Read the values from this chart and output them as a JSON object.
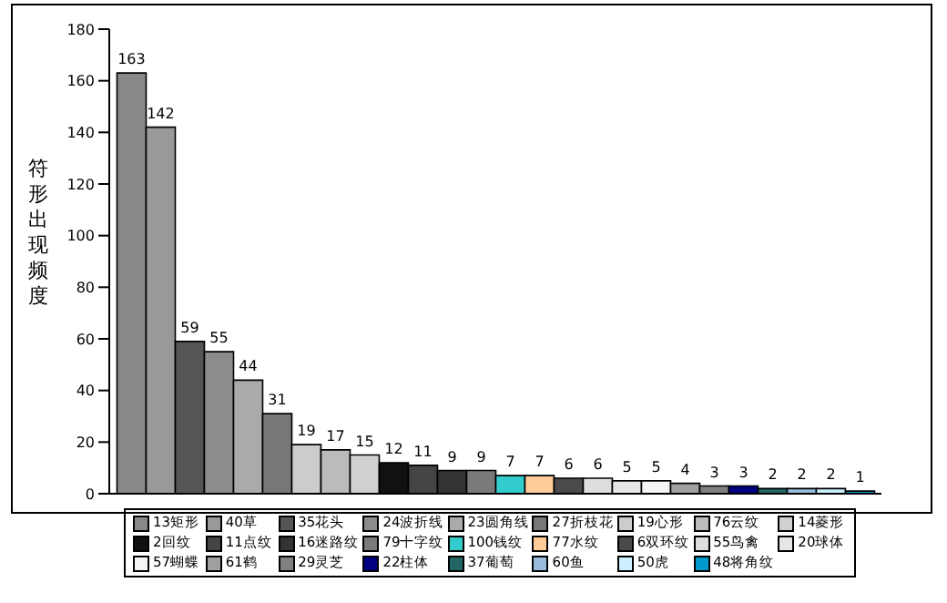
{
  "chart_data": {
    "type": "bar",
    "ylabel": "符形出现频度",
    "categories": [
      null
    ],
    "ylim": [
      0,
      180
    ],
    "yticks": [
      0,
      20,
      40,
      60,
      80,
      100,
      120,
      140,
      160,
      180
    ],
    "grid": false,
    "legend": "bottom",
    "data_labels": true,
    "series": [
      {
        "name": "13矩形",
        "color": "#888888",
        "values": [
          163
        ]
      },
      {
        "name": "40草",
        "color": "#999999",
        "values": [
          142
        ]
      },
      {
        "name": "35花头",
        "color": "#555555",
        "values": [
          59
        ]
      },
      {
        "name": "24波折线",
        "color": "#8c8c8c",
        "values": [
          55
        ]
      },
      {
        "name": "23圆角线",
        "color": "#aaaaaa",
        "values": [
          44
        ]
      },
      {
        "name": "27折枝花",
        "color": "#777777",
        "values": [
          31
        ]
      },
      {
        "name": "19心形",
        "color": "#cccccc",
        "values": [
          19
        ]
      },
      {
        "name": "76云纹",
        "color": "#bbbbbb",
        "values": [
          17
        ]
      },
      {
        "name": "14菱形",
        "color": "#d0d0d0",
        "values": [
          15
        ]
      },
      {
        "name": "2回纹",
        "color": "#111111",
        "values": [
          12
        ]
      },
      {
        "name": "11点纹",
        "color": "#444444",
        "values": [
          11
        ]
      },
      {
        "name": "16迷路纹",
        "color": "#333333",
        "values": [
          9
        ]
      },
      {
        "name": "79十字纹",
        "color": "#7a7a7a",
        "values": [
          9
        ]
      },
      {
        "name": "100钱纹",
        "color": "#33cccc",
        "values": [
          7
        ]
      },
      {
        "name": "77水纹",
        "color": "#ffcc99",
        "values": [
          7
        ]
      },
      {
        "name": "6双环纹",
        "color": "#4a4a4a",
        "values": [
          6
        ]
      },
      {
        "name": "55鸟禽",
        "color": "#dddddd",
        "values": [
          6
        ]
      },
      {
        "name": "20球体",
        "color": "#e6e6e6",
        "values": [
          5
        ]
      },
      {
        "name": "57蝴蝶",
        "color": "#f4f4f4",
        "values": [
          5
        ]
      },
      {
        "name": "61鹤",
        "color": "#a0a0a0",
        "values": [
          4
        ]
      },
      {
        "name": "29灵芝",
        "color": "#808080",
        "values": [
          3
        ]
      },
      {
        "name": "22柱体",
        "color": "#000080",
        "values": [
          3
        ]
      },
      {
        "name": "37葡萄",
        "color": "#226666",
        "values": [
          2
        ]
      },
      {
        "name": "60鱼",
        "color": "#99bbdd",
        "values": [
          2
        ]
      },
      {
        "name": "50虎",
        "color": "#cceeff",
        "values": [
          2
        ]
      },
      {
        "name": "48将角纹",
        "color": "#0099cc",
        "values": [
          1
        ]
      }
    ]
  }
}
